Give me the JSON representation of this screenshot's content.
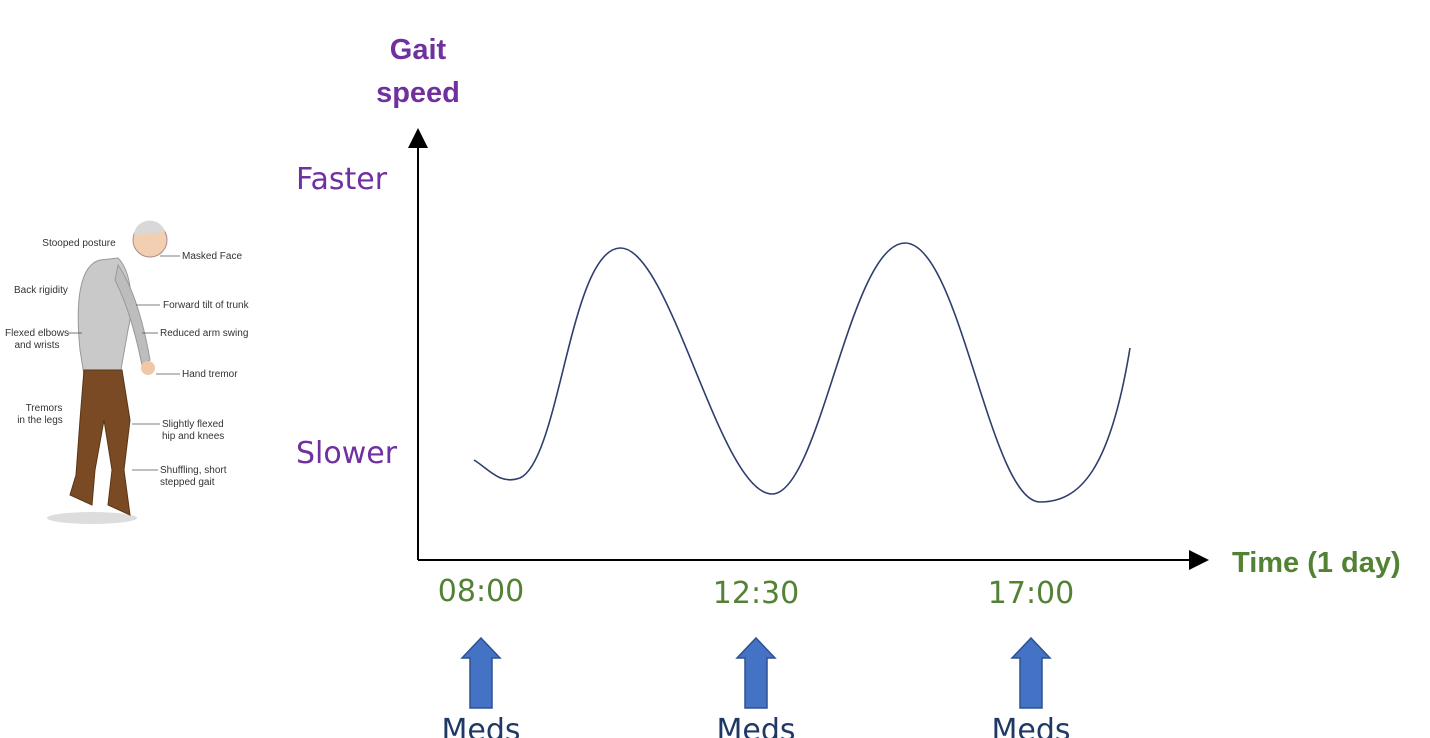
{
  "y_axis": {
    "title": [
      "Gait",
      "speed"
    ],
    "labels": [
      "Faster",
      "Slower"
    ]
  },
  "x_axis": {
    "title": "Time (1 day)",
    "labels": [
      "08:00",
      "12:30",
      "17:00"
    ]
  },
  "doses": [
    "Meds",
    "Meds",
    "Meds"
  ],
  "figure": {
    "annotations": [
      {
        "lines": [
          "Stooped posture"
        ]
      },
      {
        "lines": [
          "Masked Face"
        ]
      },
      {
        "lines": [
          "Back rigidity"
        ]
      },
      {
        "lines": [
          "Forward tilt of trunk"
        ]
      },
      {
        "lines": [
          "Flexed elbows",
          "and wrists"
        ]
      },
      {
        "lines": [
          "Reduced arm swing"
        ]
      },
      {
        "lines": [
          "Hand tremor"
        ]
      },
      {
        "lines": [
          "Tremors",
          "in the legs"
        ]
      },
      {
        "lines": [
          "Slightly flexed",
          "hip and knees"
        ]
      },
      {
        "lines": [
          "Shuffling, short",
          "stepped gait"
        ]
      }
    ]
  }
}
